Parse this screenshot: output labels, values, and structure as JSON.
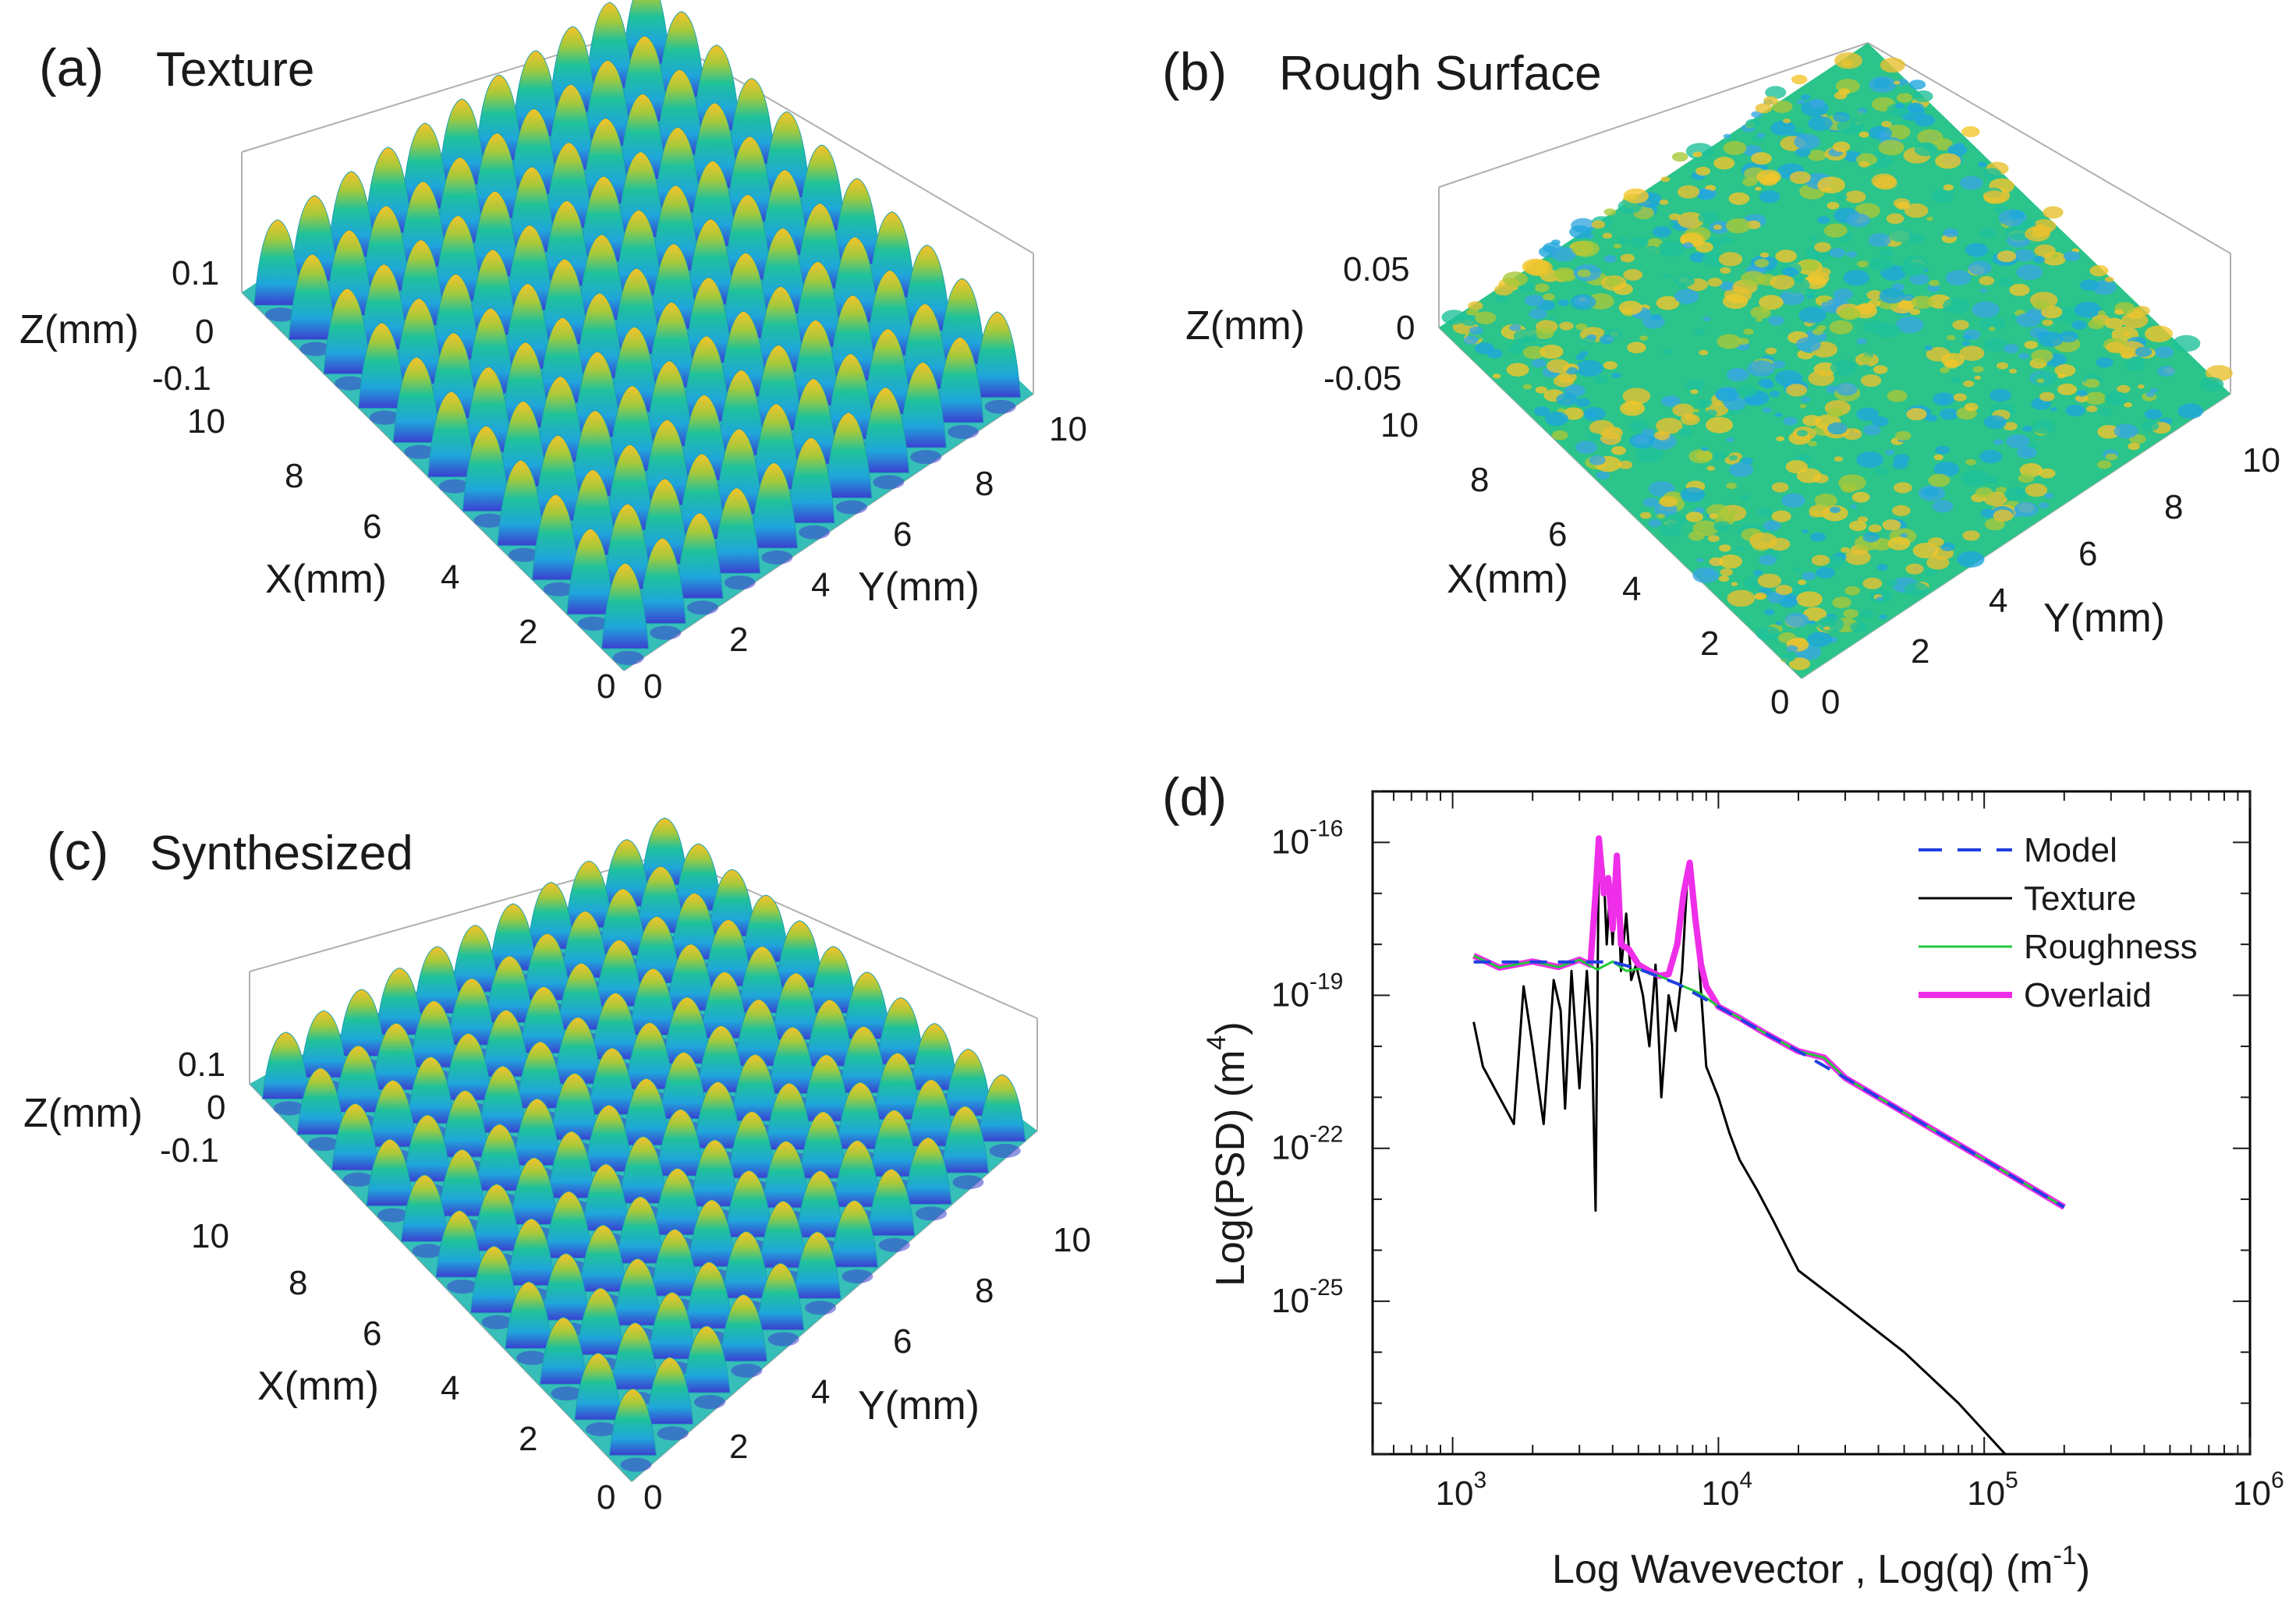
{
  "panels": [
    {
      "id": "a",
      "label": "(a)",
      "title": "Texture",
      "kind": "texture",
      "zlabel": "Z(mm)",
      "xlabel": "X(mm)",
      "ylabel": "Y(mm)",
      "zticks": [
        "0.1",
        "0",
        "-0.1"
      ],
      "xticks": [
        "10",
        "8",
        "6",
        "4",
        "2",
        "0"
      ],
      "yticks": [
        "0",
        "2",
        "4",
        "6",
        "8",
        "10"
      ]
    },
    {
      "id": "b",
      "label": "(b)",
      "title": "Rough Surface",
      "kind": "rough",
      "zlabel": "Z(mm)",
      "xlabel": "X(mm)",
      "ylabel": "Y(mm)",
      "zticks": [
        "0.05",
        "0",
        "-0.05"
      ],
      "xticks": [
        "10",
        "8",
        "6",
        "4",
        "2",
        "0"
      ],
      "yticks": [
        "0",
        "2",
        "4",
        "6",
        "8",
        "10"
      ]
    },
    {
      "id": "c",
      "label": "(c)",
      "title": "Synthesized",
      "kind": "texture",
      "zlabel": "Z(mm)",
      "xlabel": "X(mm)",
      "ylabel": "Y(mm)",
      "zticks": [
        "0.1",
        "0",
        "-0.1"
      ],
      "xticks": [
        "10",
        "8",
        "6",
        "4",
        "2",
        "0"
      ],
      "yticks": [
        "0",
        "2",
        "4",
        "6",
        "8",
        "10"
      ]
    }
  ],
  "chart_data": {
    "type": "line",
    "label": "(d)",
    "xscale": "log",
    "yscale": "log",
    "xlim": [
      500,
      1000000
    ],
    "ylim": [
      1e-28,
      1e-15
    ],
    "xticks": [
      {
        "value": 1000,
        "base": "10",
        "exp": "3"
      },
      {
        "value": 10000,
        "base": "10",
        "exp": "4"
      },
      {
        "value": 100000,
        "base": "10",
        "exp": "5"
      },
      {
        "value": 1000000,
        "base": "10",
        "exp": "6"
      }
    ],
    "yticks": [
      {
        "value": 1e-16,
        "base": "10",
        "exp": "-16"
      },
      {
        "value": 1e-19,
        "base": "10",
        "exp": "-19"
      },
      {
        "value": 1e-22,
        "base": "10",
        "exp": "-22"
      },
      {
        "value": 1e-25,
        "base": "10",
        "exp": "-25"
      }
    ],
    "xlabel": "Log Wavevector , Log(q) (m",
    "xlabel_sup": "-1",
    "ylabel": "Log(PSD) (m",
    "ylabel_sup": "4",
    "legend_position": "top-right",
    "series": [
      {
        "name": "Model",
        "color": "#1f3fe0",
        "style": "dashed",
        "width": 4,
        "x": [
          1200,
          2000,
          3000,
          4000,
          5000,
          7000,
          10000,
          15000,
          20000,
          30000,
          50000,
          100000,
          200000
        ],
        "y": [
          4.5e-19,
          4.5e-19,
          4.5e-19,
          4.5e-19,
          3.3e-19,
          1.7e-19,
          6e-20,
          1.8e-20,
          8e-21,
          2.4e-21,
          5e-22,
          6e-23,
          7e-24
        ]
      },
      {
        "name": "Texture",
        "color": "#000000",
        "style": "solid",
        "width": 3,
        "x": [
          1200,
          1300,
          1500,
          1700,
          1850,
          2000,
          2200,
          2400,
          2550,
          2650,
          2800,
          3000,
          3200,
          3350,
          3450,
          3550,
          3700,
          3800,
          3900,
          4000,
          4150,
          4300,
          4500,
          4700,
          4900,
          5200,
          5500,
          5800,
          6100,
          6500,
          6900,
          7300,
          7700,
          8000,
          8500,
          9000,
          10000,
          11000,
          12000,
          14000,
          16000,
          20000,
          30000,
          50000,
          80000,
          120000,
          150000
        ],
        "y": [
          3e-20,
          4e-21,
          1e-21,
          3e-22,
          1.5e-19,
          1e-20,
          3e-22,
          2e-19,
          5e-20,
          6e-22,
          3e-19,
          1.5e-21,
          3e-19,
          1e-20,
          6e-24,
          1e-16,
          3e-17,
          1e-18,
          1e-17,
          1e-18,
          5e-17,
          3e-19,
          4e-18,
          2e-19,
          4e-19,
          1e-19,
          1e-20,
          4e-19,
          1e-21,
          1e-19,
          2e-20,
          3e-19,
          4e-17,
          1e-17,
          3e-19,
          4e-21,
          1e-21,
          2e-22,
          6e-23,
          1.5e-23,
          4e-24,
          4e-25,
          8e-26,
          1e-26,
          1e-27,
          1e-28,
          1e-28
        ]
      },
      {
        "name": "Roughness",
        "color": "#22c83a",
        "style": "solid",
        "width": 3,
        "x": [
          1200,
          1500,
          2000,
          2500,
          3000,
          3500,
          4000,
          4500,
          5000,
          6000,
          7000,
          8500,
          10000,
          12000,
          15000,
          20000,
          25000,
          30000,
          50000,
          100000,
          200000
        ],
        "y": [
          6e-19,
          3.5e-19,
          4.6e-19,
          3.6e-19,
          5e-19,
          3.2e-19,
          4.6e-19,
          3e-19,
          3.3e-19,
          2.4e-19,
          1.7e-19,
          1.1e-19,
          6e-20,
          3.6e-20,
          1.8e-20,
          8e-21,
          6e-21,
          2.4e-21,
          5e-22,
          6e-23,
          7e-24
        ]
      },
      {
        "name": "Overlaid",
        "color": "#ee2ee8",
        "style": "solid",
        "width": 8,
        "x": [
          1200,
          1500,
          2000,
          2500,
          3000,
          3300,
          3450,
          3550,
          3700,
          3850,
          4000,
          4150,
          4300,
          4600,
          5000,
          5500,
          6000,
          6500,
          7000,
          7400,
          7800,
          8200,
          8600,
          9000,
          10000,
          12000,
          15000,
          20000,
          25000,
          30000,
          50000,
          100000,
          200000
        ],
        "y": [
          6e-19,
          3.5e-19,
          4.6e-19,
          3.6e-19,
          5e-19,
          4e-19,
          1e-17,
          1.2e-16,
          1e-17,
          2e-17,
          2e-18,
          5.5e-17,
          1e-18,
          8e-19,
          4e-19,
          3e-19,
          2.4e-19,
          2.6e-19,
          1e-18,
          1e-17,
          4e-17,
          3e-18,
          4e-19,
          1.5e-19,
          6e-20,
          3.6e-20,
          1.8e-20,
          8e-21,
          6e-21,
          2.4e-21,
          5e-22,
          6e-23,
          7e-24
        ]
      }
    ]
  }
}
